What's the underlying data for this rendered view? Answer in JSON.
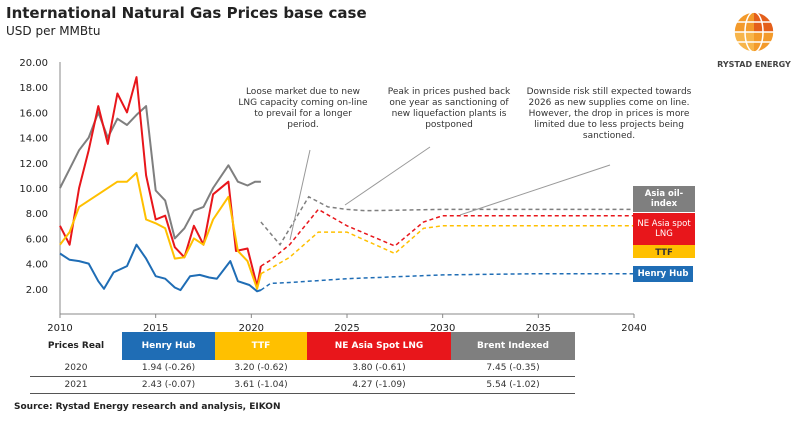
{
  "header": {
    "title": "International Natural Gas Prices base case",
    "subtitle": "USD per MMBtu"
  },
  "logo": {
    "text": "RYSTAD ENERGY"
  },
  "annotations": [
    "Loose market due to new LNG capacity coming on-line to prevail for a longer period.",
    "Peak in prices pushed back one year as sanctioning of new liquefaction plants is postponed",
    "Downside risk still expected towards 2026 as new supplies come on line. However, the drop in prices is  more limited due to less projects being sanctioned."
  ],
  "series_labels": {
    "asia_oil": "Asia oil-index",
    "ne_asia": "NE Asia spot LNG",
    "ttf": "TTF",
    "henry": "Henry Hub"
  },
  "table": {
    "headers": [
      "Prices Real",
      "Henry Hub",
      "TTF",
      "NE Asia Spot LNG",
      "Brent Indexed"
    ],
    "rows": [
      [
        "2020",
        "1.94 (-0.26)",
        "3.20 (-0.62)",
        "3.80 (-0.61)",
        "7.45 (-0.35)"
      ],
      [
        "2021",
        "2.43 (-0.07)",
        "3.61 (-1.04)",
        "4.27 (-1.09)",
        "5.54 (-1.02)"
      ]
    ]
  },
  "source": "Source: Rystad Energy research and analysis, EIKON",
  "colors": {
    "henry": "#1f6db5",
    "ttf": "#ffc000",
    "ne_asia": "#e8161b",
    "brent": "#7f7f7f"
  },
  "chart_data": {
    "type": "line",
    "title": "International Natural Gas Prices base case",
    "ylabel": "USD per MMBtu",
    "xlim": [
      2010,
      2040
    ],
    "ylim": [
      0,
      20
    ],
    "xticks": [
      "2010",
      "2015",
      "2020",
      "2025",
      "2030",
      "2035",
      "2040"
    ],
    "yticks": [
      "2.00",
      "4.00",
      "6.00",
      "8.00",
      "10.00",
      "12.00",
      "14.00",
      "16.00",
      "18.00",
      "20.00"
    ],
    "series": [
      {
        "name": "Asia oil-index",
        "color": "#7f7f7f",
        "history": [
          [
            2010,
            10
          ],
          [
            2010.5,
            11.5
          ],
          [
            2011,
            13
          ],
          [
            2011.5,
            14
          ],
          [
            2012,
            16
          ],
          [
            2012.5,
            14
          ],
          [
            2013,
            15.5
          ],
          [
            2013.5,
            15
          ],
          [
            2014,
            15.8
          ],
          [
            2014.5,
            16.5
          ],
          [
            2015,
            9.8
          ],
          [
            2015.5,
            9
          ],
          [
            2016,
            6
          ],
          [
            2016.5,
            6.8
          ],
          [
            2017,
            8.2
          ],
          [
            2017.5,
            8.5
          ],
          [
            2018,
            10
          ],
          [
            2018.8,
            11.8
          ],
          [
            2019.3,
            10.5
          ],
          [
            2019.8,
            10.2
          ],
          [
            2020.2,
            10.5
          ],
          [
            2020.5,
            10.5
          ]
        ],
        "forecast": [
          [
            2020.5,
            7.3
          ],
          [
            2021.5,
            5.5
          ],
          [
            2023,
            9.3
          ],
          [
            2024,
            8.5
          ],
          [
            2025,
            8.3
          ],
          [
            2026,
            8.2
          ],
          [
            2030,
            8.3
          ],
          [
            2040,
            8.3
          ]
        ]
      },
      {
        "name": "NE Asia spot LNG",
        "color": "#e8161b",
        "history": [
          [
            2010,
            7
          ],
          [
            2010.5,
            5.5
          ],
          [
            2011,
            10
          ],
          [
            2011.5,
            13
          ],
          [
            2012,
            16.5
          ],
          [
            2012.5,
            13.5
          ],
          [
            2013,
            17.5
          ],
          [
            2013.5,
            16
          ],
          [
            2014,
            18.8
          ],
          [
            2014.5,
            11
          ],
          [
            2015,
            7.5
          ],
          [
            2015.5,
            7.8
          ],
          [
            2016,
            5.3
          ],
          [
            2016.5,
            4.5
          ],
          [
            2017,
            7
          ],
          [
            2017.5,
            5.5
          ],
          [
            2018,
            9.5
          ],
          [
            2018.8,
            10.5
          ],
          [
            2019.2,
            5
          ],
          [
            2019.8,
            5.2
          ],
          [
            2020.3,
            2.2
          ],
          [
            2020.5,
            3.8
          ]
        ],
        "forecast": [
          [
            2020.5,
            3.8
          ],
          [
            2021,
            4.27
          ],
          [
            2022,
            5.5
          ],
          [
            2023.5,
            8.3
          ],
          [
            2025,
            7
          ],
          [
            2027.5,
            5.4
          ],
          [
            2029,
            7.3
          ],
          [
            2030,
            7.8
          ],
          [
            2040,
            7.8
          ]
        ]
      },
      {
        "name": "TTF",
        "color": "#ffc000",
        "history": [
          [
            2010,
            5.5
          ],
          [
            2010.5,
            6.5
          ],
          [
            2011,
            8.5
          ],
          [
            2012,
            9.5
          ],
          [
            2013,
            10.5
          ],
          [
            2013.5,
            10.5
          ],
          [
            2014,
            11.2
          ],
          [
            2014.5,
            7.5
          ],
          [
            2015,
            7.2
          ],
          [
            2015.5,
            6.8
          ],
          [
            2016,
            4.4
          ],
          [
            2016.5,
            4.5
          ],
          [
            2017,
            6
          ],
          [
            2017.5,
            5.5
          ],
          [
            2018,
            7.5
          ],
          [
            2018.8,
            9.3
          ],
          [
            2019.3,
            5
          ],
          [
            2019.8,
            4.2
          ],
          [
            2020.3,
            2
          ],
          [
            2020.5,
            3.2
          ]
        ],
        "forecast": [
          [
            2020.5,
            3.2
          ],
          [
            2021,
            3.61
          ],
          [
            2022,
            4.5
          ],
          [
            2023.5,
            6.5
          ],
          [
            2025,
            6.5
          ],
          [
            2027.5,
            4.8
          ],
          [
            2029,
            6.8
          ],
          [
            2030,
            7
          ],
          [
            2040,
            7
          ]
        ]
      },
      {
        "name": "Henry Hub",
        "color": "#1f6db5",
        "history": [
          [
            2010,
            4.8
          ],
          [
            2010.5,
            4.3
          ],
          [
            2011,
            4.2
          ],
          [
            2011.5,
            4
          ],
          [
            2012,
            2.6
          ],
          [
            2012.3,
            2
          ],
          [
            2012.8,
            3.3
          ],
          [
            2013.5,
            3.8
          ],
          [
            2014,
            5.5
          ],
          [
            2014.5,
            4.4
          ],
          [
            2015,
            3
          ],
          [
            2015.5,
            2.8
          ],
          [
            2016,
            2.1
          ],
          [
            2016.3,
            1.9
          ],
          [
            2016.8,
            3
          ],
          [
            2017.3,
            3.1
          ],
          [
            2017.8,
            2.9
          ],
          [
            2018.2,
            2.8
          ],
          [
            2018.9,
            4.2
          ],
          [
            2019.3,
            2.6
          ],
          [
            2019.9,
            2.3
          ],
          [
            2020.3,
            1.8
          ],
          [
            2020.5,
            1.9
          ]
        ],
        "forecast": [
          [
            2020.5,
            1.9
          ],
          [
            2021,
            2.43
          ],
          [
            2022,
            2.5
          ],
          [
            2025,
            2.8
          ],
          [
            2030,
            3.1
          ],
          [
            2035,
            3.2
          ],
          [
            2040,
            3.2
          ]
        ]
      }
    ]
  }
}
